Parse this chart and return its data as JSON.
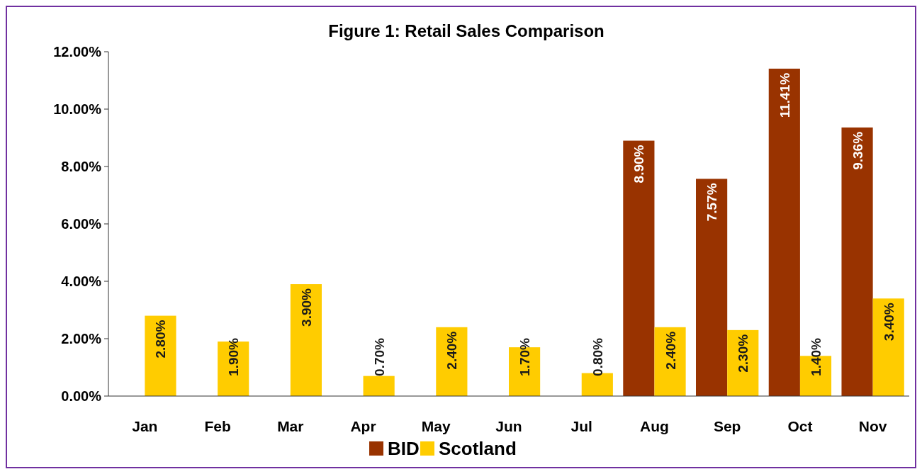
{
  "chart_data": {
    "type": "bar",
    "title": "Figure 1: Retail Sales Comparison",
    "categories": [
      "Jan",
      "Feb",
      "Mar",
      "Apr",
      "May",
      "Jun",
      "Jul",
      "Aug",
      "Sep",
      "Oct",
      "Nov"
    ],
    "series": [
      {
        "name": "BID",
        "color": "#993300",
        "values": [
          null,
          null,
          null,
          null,
          null,
          null,
          null,
          8.9,
          7.57,
          11.41,
          9.36
        ],
        "value_labels": [
          null,
          null,
          null,
          null,
          null,
          null,
          null,
          "8.90%",
          "7.57%",
          "11.41%",
          "9.36%"
        ]
      },
      {
        "name": "Scotland",
        "color": "#ffcc00",
        "values": [
          2.8,
          1.9,
          3.9,
          0.7,
          2.4,
          1.7,
          0.8,
          2.4,
          2.3,
          1.4,
          3.4
        ],
        "value_labels": [
          "2.80%",
          "1.90%",
          "3.90%",
          "0.70%",
          "2.40%",
          "1.70%",
          "0.80%",
          "2.40%",
          "2.30%",
          "1.40%",
          "3.40%"
        ]
      }
    ],
    "ylim": [
      0,
      12
    ],
    "yticks": [
      {
        "value": 0,
        "label": "0.00%"
      },
      {
        "value": 2,
        "label": "2.00%"
      },
      {
        "value": 4,
        "label": "4.00%"
      },
      {
        "value": 6,
        "label": "6.00%"
      },
      {
        "value": 8,
        "label": "8.00%"
      },
      {
        "value": 10,
        "label": "10.00%"
      },
      {
        "value": 12,
        "label": "12.00%"
      }
    ],
    "grid": false,
    "legend": "bottom"
  }
}
